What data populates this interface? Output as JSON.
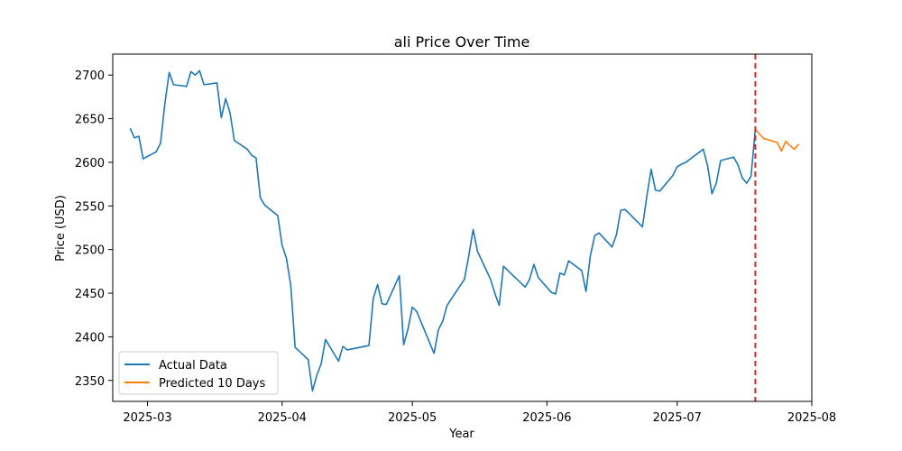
{
  "chart_data": {
    "type": "line",
    "title": "ali Price Over Time",
    "xlabel": "Year",
    "ylabel": "Price (USD)",
    "xlim": [
      "2025-02-21",
      "2025-08-01"
    ],
    "ylim": [
      2326,
      2724
    ],
    "x_ticks": [
      "2025-03-01",
      "2025-04-01",
      "2025-05-01",
      "2025-06-01",
      "2025-07-01",
      "2025-08-01"
    ],
    "x_tick_labels": [
      "2025-03",
      "2025-04",
      "2025-05",
      "2025-06",
      "2025-07",
      "2025-08"
    ],
    "y_ticks": [
      2350,
      2400,
      2450,
      2500,
      2550,
      2600,
      2650,
      2700
    ],
    "grid": false,
    "legend": "lower-left",
    "vline": {
      "x": "2025-07-19",
      "color": "#d62728",
      "style": "dashed"
    },
    "series": [
      {
        "name": "Actual Data",
        "color": "#1f77b4",
        "x": [
          "2025-02-25",
          "2025-02-26",
          "2025-02-27",
          "2025-02-28",
          "2025-03-03",
          "2025-03-04",
          "2025-03-05",
          "2025-03-06",
          "2025-03-07",
          "2025-03-10",
          "2025-03-11",
          "2025-03-12",
          "2025-03-13",
          "2025-03-14",
          "2025-03-17",
          "2025-03-18",
          "2025-03-19",
          "2025-03-20",
          "2025-03-21",
          "2025-03-24",
          "2025-03-25",
          "2025-03-26",
          "2025-03-27",
          "2025-03-28",
          "2025-03-31",
          "2025-04-01",
          "2025-04-02",
          "2025-04-03",
          "2025-04-04",
          "2025-04-07",
          "2025-04-08",
          "2025-04-09",
          "2025-04-10",
          "2025-04-11",
          "2025-04-14",
          "2025-04-15",
          "2025-04-16",
          "2025-04-21",
          "2025-04-22",
          "2025-04-23",
          "2025-04-24",
          "2025-04-25",
          "2025-04-28",
          "2025-04-29",
          "2025-04-30",
          "2025-05-01",
          "2025-05-02",
          "2025-05-06",
          "2025-05-07",
          "2025-05-08",
          "2025-05-09",
          "2025-05-13",
          "2025-05-14",
          "2025-05-15",
          "2025-05-16",
          "2025-05-19",
          "2025-05-20",
          "2025-05-21",
          "2025-05-22",
          "2025-05-23",
          "2025-05-27",
          "2025-05-28",
          "2025-05-29",
          "2025-05-30",
          "2025-06-02",
          "2025-06-03",
          "2025-06-04",
          "2025-06-05",
          "2025-06-06",
          "2025-06-09",
          "2025-06-10",
          "2025-06-11",
          "2025-06-12",
          "2025-06-13",
          "2025-06-16",
          "2025-06-17",
          "2025-06-18",
          "2025-06-19",
          "2025-06-23",
          "2025-06-24",
          "2025-06-25",
          "2025-06-26",
          "2025-06-27",
          "2025-06-30",
          "2025-07-01",
          "2025-07-02",
          "2025-07-03",
          "2025-07-07",
          "2025-07-08",
          "2025-07-09",
          "2025-07-10",
          "2025-07-11",
          "2025-07-14",
          "2025-07-15",
          "2025-07-16",
          "2025-07-17",
          "2025-07-18",
          "2025-07-19"
        ],
        "y": [
          2639,
          2628,
          2630,
          2604,
          2612,
          2622,
          2667,
          2703,
          2689,
          2687,
          2704,
          2700,
          2705,
          2689,
          2691,
          2651,
          2673,
          2657,
          2625,
          2615,
          2608,
          2605,
          2559,
          2551,
          2539,
          2505,
          2490,
          2459,
          2388,
          2374,
          2338,
          2356,
          2369,
          2397,
          2372,
          2389,
          2385,
          2390,
          2444,
          2460,
          2438,
          2437,
          2470,
          2391,
          2409,
          2434,
          2429,
          2381,
          2408,
          2418,
          2436,
          2466,
          2493,
          2523,
          2498,
          2466,
          2450,
          2436,
          2481,
          2476,
          2457,
          2466,
          2483,
          2468,
          2451,
          2449,
          2473,
          2471,
          2487,
          2476,
          2452,
          2493,
          2516,
          2519,
          2503,
          2517,
          2545,
          2546,
          2526,
          2561,
          2592,
          2568,
          2567,
          2585,
          2595,
          2598,
          2600,
          2615,
          2596,
          2564,
          2576,
          2602,
          2606,
          2597,
          2582,
          2576,
          2584,
          2638
        ]
      },
      {
        "name": "Predicted 10 Days",
        "color": "#ff7f0e",
        "x": [
          "2025-07-19",
          "2025-07-20",
          "2025-07-21",
          "2025-07-22",
          "2025-07-23",
          "2025-07-24",
          "2025-07-25",
          "2025-07-26",
          "2025-07-27",
          "2025-07-28",
          "2025-07-29"
        ],
        "y": [
          2638,
          2632,
          2627,
          2626,
          2624,
          2623,
          2613,
          2624,
          2619,
          2615,
          2621
        ]
      }
    ]
  }
}
